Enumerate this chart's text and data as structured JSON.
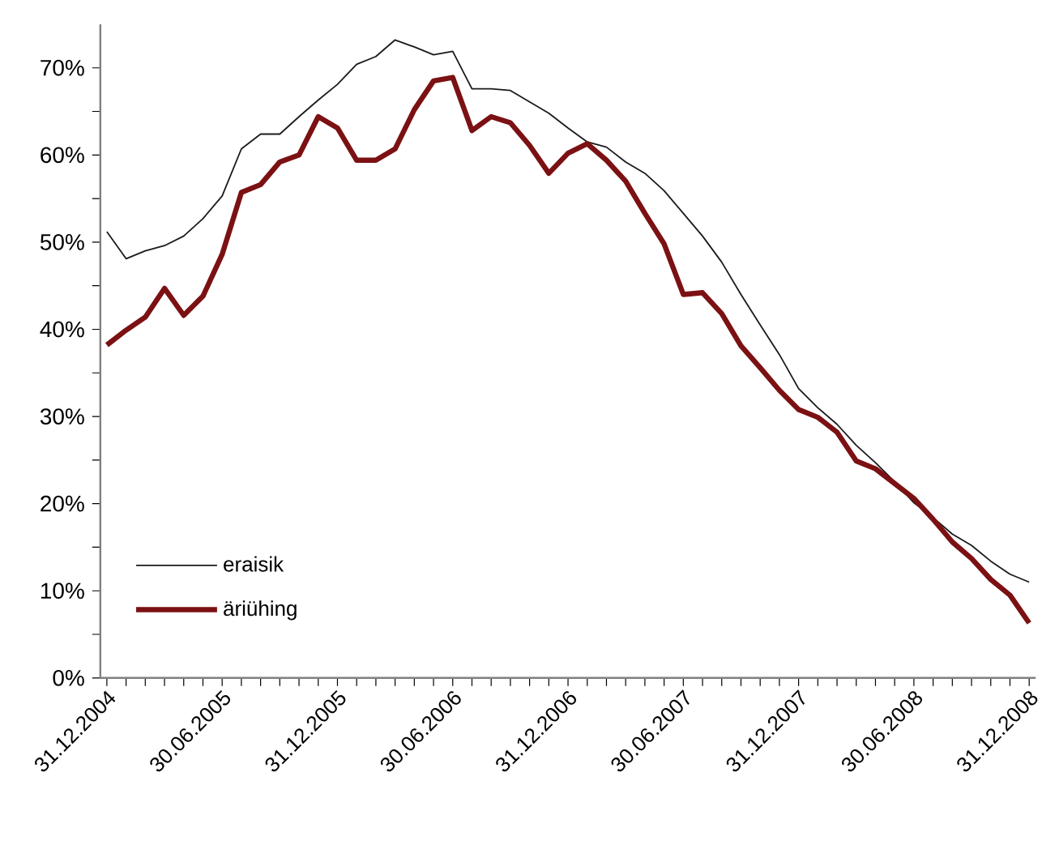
{
  "chart_data": {
    "type": "line",
    "categories": [
      "31.12.2004",
      null,
      null,
      null,
      null,
      null,
      "30.06.2005",
      null,
      null,
      null,
      null,
      null,
      "31.12.2005",
      null,
      null,
      null,
      null,
      null,
      "30.06.2006",
      null,
      null,
      null,
      null,
      null,
      "31.12.2006",
      null,
      null,
      null,
      null,
      null,
      "30.06.2007",
      null,
      null,
      null,
      null,
      null,
      "31.12.2007",
      null,
      null,
      null,
      null,
      null,
      "30.06.2008",
      null,
      null,
      null,
      null,
      null,
      "31.12.2008"
    ],
    "series": [
      {
        "name": "eraisik",
        "color": "#1a1a1a",
        "values": [
          51.2,
          48.1,
          49.0,
          49.6,
          50.7,
          52.7,
          55.3,
          60.7,
          62.4,
          62.4,
          64.4,
          66.3,
          68.1,
          70.4,
          71.3,
          73.2,
          72.4,
          71.5,
          71.9,
          67.6,
          67.6,
          67.4,
          66.1,
          64.8,
          63.1,
          61.5,
          60.9,
          59.2,
          57.9,
          55.9,
          53.3,
          50.7,
          47.7,
          44.0,
          40.5,
          37.1,
          33.2,
          31.0,
          29.1,
          26.7,
          24.7,
          22.5,
          20.1,
          18.4,
          16.5,
          15.2,
          13.4,
          11.9,
          11.0
        ]
      },
      {
        "name": "äriühing",
        "color": "#7b1113",
        "values": [
          38.2,
          39.9,
          41.4,
          44.7,
          41.6,
          43.8,
          48.6,
          55.7,
          56.6,
          59.2,
          60.0,
          64.4,
          63.1,
          59.4,
          59.4,
          60.7,
          65.2,
          68.5,
          68.9,
          62.8,
          64.4,
          63.7,
          61.1,
          57.9,
          60.2,
          61.3,
          59.4,
          57.0,
          53.3,
          49.8,
          44.0,
          44.2,
          41.8,
          38.1,
          35.6,
          33.0,
          30.8,
          29.9,
          28.2,
          24.9,
          24.0,
          22.3,
          20.6,
          18.2,
          15.6,
          13.7,
          11.3,
          9.5,
          6.3
        ]
      }
    ],
    "ylim": [
      0,
      75
    ],
    "yticks": [
      {
        "value": 0,
        "label": "0%"
      },
      {
        "value": 5,
        "label": null
      },
      {
        "value": 10,
        "label": "10%"
      },
      {
        "value": 15,
        "label": null
      },
      {
        "value": 20,
        "label": "20%"
      },
      {
        "value": 25,
        "label": null
      },
      {
        "value": 30,
        "label": "30%"
      },
      {
        "value": 35,
        "label": null
      },
      {
        "value": 40,
        "label": "40%"
      },
      {
        "value": 45,
        "label": null
      },
      {
        "value": 50,
        "label": "50%"
      },
      {
        "value": 55,
        "label": null
      },
      {
        "value": 60,
        "label": "60%"
      },
      {
        "value": 65,
        "label": null
      },
      {
        "value": 70,
        "label": "70%"
      }
    ],
    "grid": false,
    "legend": "bottom left",
    "marker": "none",
    "line_style": "solid"
  }
}
